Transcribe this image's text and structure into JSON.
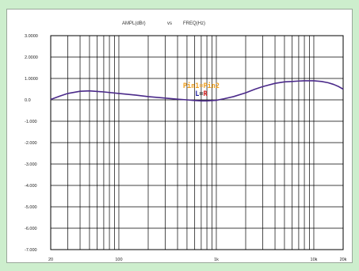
{
  "chart_data": {
    "type": "line",
    "title": {
      "y_quantity": "AMPL(dBr)",
      "vs": "vs",
      "x_quantity": "FREQ(Hz)"
    },
    "x_scale": "log",
    "xlim": [
      20,
      20000
    ],
    "ylim": [
      -7,
      3
    ],
    "grid": true,
    "x_tick_labels": [
      {
        "value": 20,
        "label": "20"
      },
      {
        "value": 100,
        "label": "100"
      },
      {
        "value": 1000,
        "label": "1k"
      },
      {
        "value": 10000,
        "label": "10k"
      },
      {
        "value": 20000,
        "label": "20k"
      }
    ],
    "y_tick_labels": [
      {
        "value": 3,
        "label": "3.0000"
      },
      {
        "value": 2,
        "label": "2.0000"
      },
      {
        "value": 1,
        "label": "1.0000"
      },
      {
        "value": 0,
        "label": "0.0"
      },
      {
        "value": -1,
        "label": "-1.000"
      },
      {
        "value": -2,
        "label": "-2.000"
      },
      {
        "value": -3,
        "label": "-3.000"
      },
      {
        "value": -4,
        "label": "-4.000"
      },
      {
        "value": -5,
        "label": "-5.000"
      },
      {
        "value": -6,
        "label": "-6.000"
      },
      {
        "value": -7,
        "label": "-7.000"
      }
    ],
    "annotations": {
      "line1": "Pin1=Pin2",
      "line2_left": "L",
      "line2_eq": "=",
      "line2_right": "R",
      "anchor": {
        "x": 700,
        "y": 0.55
      }
    },
    "series": [
      {
        "color": "#4b2a8a",
        "x": [
          20,
          25,
          30,
          40,
          50,
          70,
          100,
          150,
          200,
          300,
          400,
          500,
          600,
          700,
          800,
          1000,
          1200,
          1500,
          2000,
          2500,
          3000,
          4000,
          5000,
          6000,
          7000,
          8000,
          9000,
          10000,
          12000,
          14000,
          16000,
          18000,
          20000
        ],
        "y": [
          0.02,
          0.18,
          0.3,
          0.4,
          0.42,
          0.37,
          0.3,
          0.22,
          0.15,
          0.08,
          0.03,
          0.0,
          -0.03,
          -0.05,
          -0.05,
          -0.02,
          0.05,
          0.15,
          0.33,
          0.5,
          0.62,
          0.77,
          0.84,
          0.86,
          0.88,
          0.89,
          0.89,
          0.89,
          0.86,
          0.8,
          0.72,
          0.62,
          0.5
        ]
      }
    ]
  },
  "colors": {
    "page_background": "#cdeecd",
    "annotation_line1": "#f0a020",
    "annotation_line2_left": "#1a1aa0",
    "annotation_line2_eq": "#222222",
    "annotation_line2_right": "#d02020"
  }
}
